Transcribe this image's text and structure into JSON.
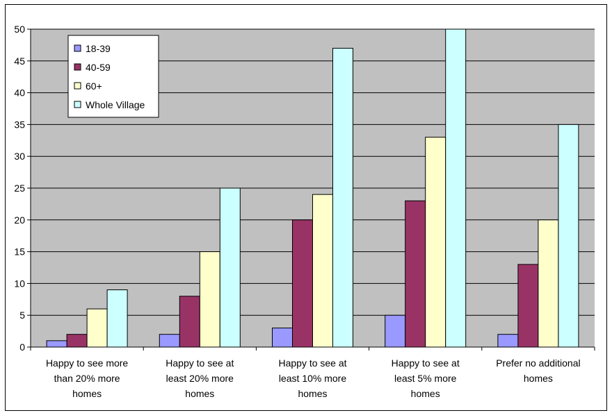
{
  "chart_data": {
    "type": "bar",
    "title": "",
    "xlabel": "",
    "ylabel": "",
    "ylim": [
      0,
      50
    ],
    "yticks": [
      0,
      5,
      10,
      15,
      20,
      25,
      30,
      35,
      40,
      45,
      50
    ],
    "grid": true,
    "legend_position": "top-left",
    "categories": [
      [
        "Happy to see more",
        "than 20% more",
        "homes"
      ],
      [
        "Happy to see at",
        "least 20% more",
        "homes"
      ],
      [
        "Happy to see at",
        "least 10% more",
        "homes"
      ],
      [
        "Happy to see at",
        "least 5% more",
        "homes"
      ],
      [
        "Prefer no additional",
        "homes"
      ]
    ],
    "series": [
      {
        "name": "18-39",
        "color": "#9999ff",
        "values": [
          1,
          2,
          3,
          5,
          2
        ]
      },
      {
        "name": "40-59",
        "color": "#993366",
        "values": [
          2,
          8,
          20,
          23,
          13
        ]
      },
      {
        "name": "60+",
        "color": "#ffffcc",
        "values": [
          6,
          15,
          24,
          33,
          20
        ]
      },
      {
        "name": "Whole Village",
        "color": "#ccffff",
        "values": [
          9,
          25,
          47,
          50,
          35
        ]
      }
    ],
    "plot_background": "#c0c0c0"
  }
}
